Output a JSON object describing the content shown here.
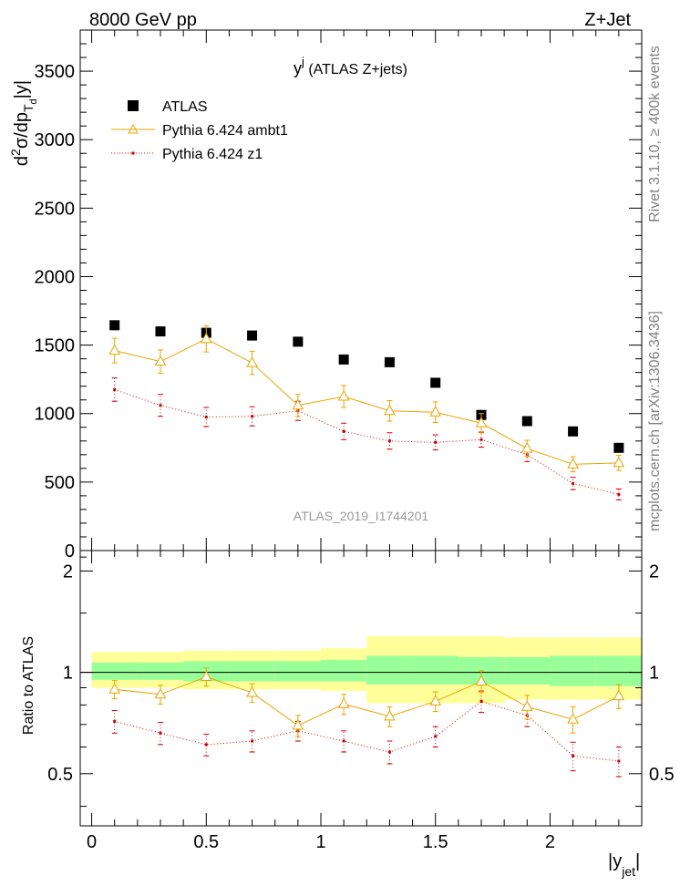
{
  "header": {
    "left_label": "8000 GeV pp",
    "right_label": "Z+Jet"
  },
  "side_labels": {
    "rivet": "Rivet 3.1.10, ≥ 400k events",
    "mcplots": "mcplots.cern.ch [arXiv:1306.3436]"
  },
  "chart_data": [
    {
      "type": "scatter",
      "title_main": "y",
      "title_sup": "j",
      "title_rest": " (ATLAS Z+jets)",
      "ylabel_parts": {
        "a": "d",
        "b": "2",
        "c": "σ/dp",
        "d": "T",
        "e": "d",
        "f": "|y|"
      },
      "watermark": "ATLAS_2019_I1744201",
      "ylim": [
        0,
        3800
      ],
      "xlim": [
        -0.05,
        2.4
      ],
      "yticks": [
        "0",
        "500",
        "1000",
        "1500",
        "2000",
        "2500",
        "3000",
        "3500"
      ],
      "x": [
        0.1,
        0.3,
        0.5,
        0.7,
        0.9,
        1.1,
        1.3,
        1.5,
        1.7,
        1.9,
        2.1,
        2.3
      ],
      "series": [
        {
          "name": "ATLAS",
          "color": "#000000",
          "values": [
            1645,
            1600,
            1590,
            1570,
            1525,
            1395,
            1375,
            1225,
            990,
            945,
            870,
            750
          ]
        },
        {
          "name": "Pythia 6.424 ambt1",
          "color": "#e8a500",
          "values": [
            1460,
            1380,
            1545,
            1370,
            1060,
            1125,
            1020,
            1010,
            930,
            745,
            630,
            640
          ],
          "errors": [
            90,
            85,
            95,
            85,
            80,
            80,
            75,
            75,
            70,
            60,
            55,
            55
          ]
        },
        {
          "name": "Pythia 6.424 z1",
          "color": "#cc0000",
          "values": [
            1175,
            1060,
            975,
            980,
            1020,
            870,
            800,
            790,
            810,
            700,
            490,
            410
          ],
          "errors": [
            85,
            80,
            70,
            70,
            70,
            60,
            60,
            55,
            55,
            50,
            45,
            40
          ]
        }
      ]
    },
    {
      "type": "scatter",
      "ylabel": "Ratio to ATLAS",
      "xlabel_main": "|y",
      "xlabel_sub": "jet",
      "xlabel_end": "|",
      "ylim": [
        0.35,
        2.3
      ],
      "yticks": [
        "0.5",
        "1",
        "2"
      ],
      "xticks": [
        "0",
        "0.5",
        "1",
        "1.5",
        "2"
      ],
      "bin_edges": [
        0,
        0.2,
        0.4,
        0.6,
        0.8,
        1.0,
        1.2,
        1.4,
        1.6,
        1.8,
        2.0,
        2.2,
        2.4
      ],
      "bands": {
        "inner_color": "#99ff99",
        "outer_color": "#ffff99",
        "inner_low": [
          0.95,
          0.95,
          0.94,
          0.94,
          0.94,
          0.94,
          0.92,
          0.92,
          0.92,
          0.92,
          0.91,
          0.91
        ],
        "inner_high": [
          1.07,
          1.07,
          1.08,
          1.08,
          1.08,
          1.09,
          1.12,
          1.12,
          1.11,
          1.11,
          1.12,
          1.12
        ],
        "outer_low": [
          0.9,
          0.9,
          0.89,
          0.89,
          0.89,
          0.88,
          0.81,
          0.81,
          0.81,
          0.83,
          0.83,
          0.83
        ],
        "outer_high": [
          1.15,
          1.15,
          1.16,
          1.16,
          1.16,
          1.18,
          1.28,
          1.28,
          1.28,
          1.27,
          1.27,
          1.27
        ]
      },
      "x": [
        0.1,
        0.3,
        0.5,
        0.7,
        0.9,
        1.1,
        1.3,
        1.5,
        1.7,
        1.9,
        2.1,
        2.3
      ],
      "series": [
        {
          "name": "Pythia 6.424 ambt1",
          "color": "#e8a500",
          "values": [
            0.89,
            0.86,
            0.97,
            0.87,
            0.695,
            0.805,
            0.74,
            0.82,
            0.94,
            0.79,
            0.725,
            0.85
          ],
          "errors": [
            0.055,
            0.055,
            0.06,
            0.055,
            0.05,
            0.055,
            0.05,
            0.055,
            0.07,
            0.065,
            0.065,
            0.07
          ]
        },
        {
          "name": "Pythia 6.424 z1",
          "color": "#cc0000",
          "values": [
            0.715,
            0.66,
            0.61,
            0.625,
            0.67,
            0.625,
            0.58,
            0.645,
            0.82,
            0.745,
            0.565,
            0.545
          ],
          "errors": [
            0.055,
            0.05,
            0.045,
            0.045,
            0.045,
            0.045,
            0.045,
            0.045,
            0.06,
            0.055,
            0.055,
            0.055
          ]
        }
      ]
    }
  ]
}
